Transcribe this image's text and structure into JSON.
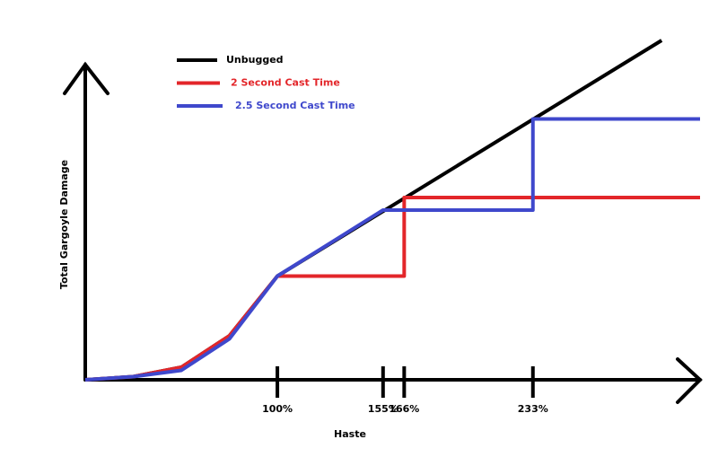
{
  "chart_data": {
    "type": "line",
    "xlabel": "Haste",
    "ylabel": "Total Gargoyle Damage",
    "xlim": [
      0,
      320
    ],
    "ylim": [
      0,
      110
    ],
    "xticks": [
      {
        "value": 100,
        "label": "100%"
      },
      {
        "value": 155,
        "label": "155%"
      },
      {
        "value": 166,
        "label": "166%"
      },
      {
        "value": 233,
        "label": "233%"
      }
    ],
    "legend": "top-left",
    "series": [
      {
        "name": "Unbugged",
        "color": "#000000",
        "x": [
          0,
          25,
          50,
          75,
          100,
          300
        ],
        "values": [
          0,
          1,
          4,
          14,
          33,
          108
        ]
      },
      {
        "name": "2 Second Cast Time",
        "color": "#e3262a",
        "x": [
          0,
          25,
          50,
          75,
          100,
          166,
          166,
          320
        ],
        "values": [
          0,
          1,
          4,
          14,
          33,
          33,
          58,
          58
        ]
      },
      {
        "name": "2.5 Second Cast Time",
        "color": "#3f48cc",
        "x": [
          0,
          25,
          50,
          75,
          100,
          155,
          233,
          233,
          320
        ],
        "values": [
          0,
          1,
          3,
          13,
          33,
          54,
          54,
          83,
          83
        ]
      }
    ]
  }
}
